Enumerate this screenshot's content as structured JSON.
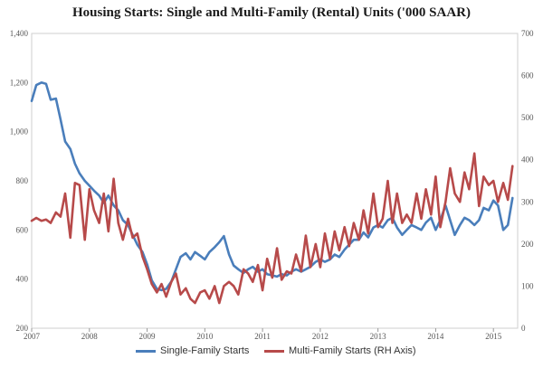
{
  "chart_data": {
    "type": "line",
    "title": "Housing Starts: Single and Multi-Family (Rental) Units  ('000 SAAR)",
    "xlabel": "",
    "ylabel": "",
    "x_ticks": [
      "2007",
      "2008",
      "2009",
      "2010",
      "2011",
      "2012",
      "2013",
      "2014",
      "2015"
    ],
    "x_range": [
      2007.0,
      2015.42
    ],
    "left_axis": {
      "range": [
        200,
        1400
      ],
      "ticks": [
        "200",
        "400",
        "600",
        "800",
        "1,000",
        "1,200",
        "1,400"
      ]
    },
    "right_axis": {
      "range": [
        0,
        700
      ],
      "ticks": [
        "0",
        "100",
        "200",
        "300",
        "400",
        "500",
        "600",
        "700"
      ]
    },
    "grid": false,
    "legend_position": "bottom",
    "series": [
      {
        "name": "Single-Family Starts",
        "axis": "left",
        "color": "#4a7ebb",
        "points": [
          [
            2007.0,
            1125
          ],
          [
            2007.08,
            1190
          ],
          [
            2007.17,
            1200
          ],
          [
            2007.25,
            1195
          ],
          [
            2007.33,
            1130
          ],
          [
            2007.42,
            1135
          ],
          [
            2007.5,
            1050
          ],
          [
            2007.58,
            960
          ],
          [
            2007.67,
            930
          ],
          [
            2007.75,
            870
          ],
          [
            2007.83,
            830
          ],
          [
            2007.92,
            800
          ],
          [
            2008.0,
            780
          ],
          [
            2008.08,
            760
          ],
          [
            2008.17,
            740
          ],
          [
            2008.25,
            710
          ],
          [
            2008.33,
            740
          ],
          [
            2008.42,
            700
          ],
          [
            2008.5,
            680
          ],
          [
            2008.58,
            640
          ],
          [
            2008.67,
            620
          ],
          [
            2008.75,
            580
          ],
          [
            2008.83,
            540
          ],
          [
            2008.92,
            510
          ],
          [
            2009.0,
            460
          ],
          [
            2009.08,
            395
          ],
          [
            2009.17,
            360
          ],
          [
            2009.25,
            355
          ],
          [
            2009.33,
            360
          ],
          [
            2009.42,
            390
          ],
          [
            2009.5,
            440
          ],
          [
            2009.58,
            490
          ],
          [
            2009.67,
            505
          ],
          [
            2009.75,
            480
          ],
          [
            2009.83,
            510
          ],
          [
            2009.92,
            495
          ],
          [
            2010.0,
            480
          ],
          [
            2010.08,
            510
          ],
          [
            2010.17,
            530
          ],
          [
            2010.25,
            550
          ],
          [
            2010.33,
            575
          ],
          [
            2010.42,
            500
          ],
          [
            2010.5,
            455
          ],
          [
            2010.58,
            440
          ],
          [
            2010.67,
            425
          ],
          [
            2010.75,
            440
          ],
          [
            2010.83,
            450
          ],
          [
            2010.92,
            430
          ],
          [
            2011.0,
            440
          ],
          [
            2011.08,
            420
          ],
          [
            2011.17,
            415
          ],
          [
            2011.25,
            410
          ],
          [
            2011.33,
            420
          ],
          [
            2011.42,
            415
          ],
          [
            2011.5,
            430
          ],
          [
            2011.58,
            440
          ],
          [
            2011.67,
            430
          ],
          [
            2011.75,
            440
          ],
          [
            2011.83,
            450
          ],
          [
            2011.92,
            470
          ],
          [
            2012.0,
            480
          ],
          [
            2012.08,
            470
          ],
          [
            2012.17,
            480
          ],
          [
            2012.25,
            500
          ],
          [
            2012.33,
            490
          ],
          [
            2012.42,
            520
          ],
          [
            2012.5,
            540
          ],
          [
            2012.58,
            560
          ],
          [
            2012.67,
            560
          ],
          [
            2012.75,
            590
          ],
          [
            2012.83,
            570
          ],
          [
            2012.92,
            610
          ],
          [
            2013.0,
            620
          ],
          [
            2013.08,
            610
          ],
          [
            2013.17,
            640
          ],
          [
            2013.25,
            650
          ],
          [
            2013.33,
            610
          ],
          [
            2013.42,
            580
          ],
          [
            2013.5,
            600
          ],
          [
            2013.58,
            620
          ],
          [
            2013.67,
            610
          ],
          [
            2013.75,
            600
          ],
          [
            2013.83,
            630
          ],
          [
            2013.92,
            650
          ],
          [
            2014.0,
            600
          ],
          [
            2014.08,
            640
          ],
          [
            2014.17,
            700
          ],
          [
            2014.25,
            640
          ],
          [
            2014.33,
            580
          ],
          [
            2014.42,
            620
          ],
          [
            2014.5,
            650
          ],
          [
            2014.58,
            640
          ],
          [
            2014.67,
            620
          ],
          [
            2014.75,
            640
          ],
          [
            2014.83,
            690
          ],
          [
            2014.92,
            680
          ],
          [
            2015.0,
            720
          ],
          [
            2015.08,
            700
          ],
          [
            2015.17,
            600
          ],
          [
            2015.25,
            620
          ],
          [
            2015.33,
            730
          ]
        ]
      },
      {
        "name": "Multi-Family Starts (RH Axis)",
        "axis": "right",
        "color": "#b74a4a",
        "points": [
          [
            2007.0,
            255
          ],
          [
            2007.08,
            262
          ],
          [
            2007.17,
            255
          ],
          [
            2007.25,
            258
          ],
          [
            2007.33,
            250
          ],
          [
            2007.42,
            275
          ],
          [
            2007.5,
            265
          ],
          [
            2007.58,
            320
          ],
          [
            2007.67,
            215
          ],
          [
            2007.75,
            345
          ],
          [
            2007.83,
            340
          ],
          [
            2007.92,
            210
          ],
          [
            2008.0,
            330
          ],
          [
            2008.08,
            280
          ],
          [
            2008.17,
            250
          ],
          [
            2008.25,
            320
          ],
          [
            2008.33,
            230
          ],
          [
            2008.42,
            355
          ],
          [
            2008.5,
            250
          ],
          [
            2008.58,
            210
          ],
          [
            2008.67,
            260
          ],
          [
            2008.75,
            215
          ],
          [
            2008.83,
            225
          ],
          [
            2008.92,
            170
          ],
          [
            2009.0,
            140
          ],
          [
            2009.08,
            105
          ],
          [
            2009.17,
            85
          ],
          [
            2009.25,
            105
          ],
          [
            2009.33,
            75
          ],
          [
            2009.42,
            110
          ],
          [
            2009.5,
            130
          ],
          [
            2009.58,
            80
          ],
          [
            2009.67,
            95
          ],
          [
            2009.75,
            70
          ],
          [
            2009.83,
            60
          ],
          [
            2009.92,
            85
          ],
          [
            2010.0,
            90
          ],
          [
            2010.08,
            70
          ],
          [
            2010.17,
            100
          ],
          [
            2010.25,
            60
          ],
          [
            2010.33,
            100
          ],
          [
            2010.42,
            110
          ],
          [
            2010.5,
            100
          ],
          [
            2010.58,
            80
          ],
          [
            2010.67,
            140
          ],
          [
            2010.75,
            130
          ],
          [
            2010.83,
            110
          ],
          [
            2010.92,
            150
          ],
          [
            2011.0,
            90
          ],
          [
            2011.08,
            165
          ],
          [
            2011.17,
            120
          ],
          [
            2011.25,
            190
          ],
          [
            2011.33,
            115
          ],
          [
            2011.42,
            135
          ],
          [
            2011.5,
            130
          ],
          [
            2011.58,
            175
          ],
          [
            2011.67,
            135
          ],
          [
            2011.75,
            220
          ],
          [
            2011.83,
            145
          ],
          [
            2011.92,
            200
          ],
          [
            2012.0,
            145
          ],
          [
            2012.08,
            225
          ],
          [
            2012.17,
            165
          ],
          [
            2012.25,
            230
          ],
          [
            2012.33,
            185
          ],
          [
            2012.42,
            240
          ],
          [
            2012.5,
            195
          ],
          [
            2012.58,
            250
          ],
          [
            2012.67,
            210
          ],
          [
            2012.75,
            280
          ],
          [
            2012.83,
            225
          ],
          [
            2012.92,
            320
          ],
          [
            2013.0,
            240
          ],
          [
            2013.08,
            260
          ],
          [
            2013.17,
            350
          ],
          [
            2013.25,
            250
          ],
          [
            2013.33,
            320
          ],
          [
            2013.42,
            250
          ],
          [
            2013.5,
            270
          ],
          [
            2013.58,
            250
          ],
          [
            2013.67,
            320
          ],
          [
            2013.75,
            260
          ],
          [
            2013.83,
            330
          ],
          [
            2013.92,
            270
          ],
          [
            2014.0,
            360
          ],
          [
            2014.08,
            240
          ],
          [
            2014.17,
            300
          ],
          [
            2014.25,
            380
          ],
          [
            2014.33,
            320
          ],
          [
            2014.42,
            300
          ],
          [
            2014.5,
            370
          ],
          [
            2014.58,
            330
          ],
          [
            2014.67,
            415
          ],
          [
            2014.75,
            290
          ],
          [
            2014.83,
            360
          ],
          [
            2014.92,
            340
          ],
          [
            2015.0,
            350
          ],
          [
            2015.08,
            300
          ],
          [
            2015.17,
            345
          ],
          [
            2015.25,
            305
          ],
          [
            2015.33,
            385
          ]
        ]
      }
    ]
  }
}
